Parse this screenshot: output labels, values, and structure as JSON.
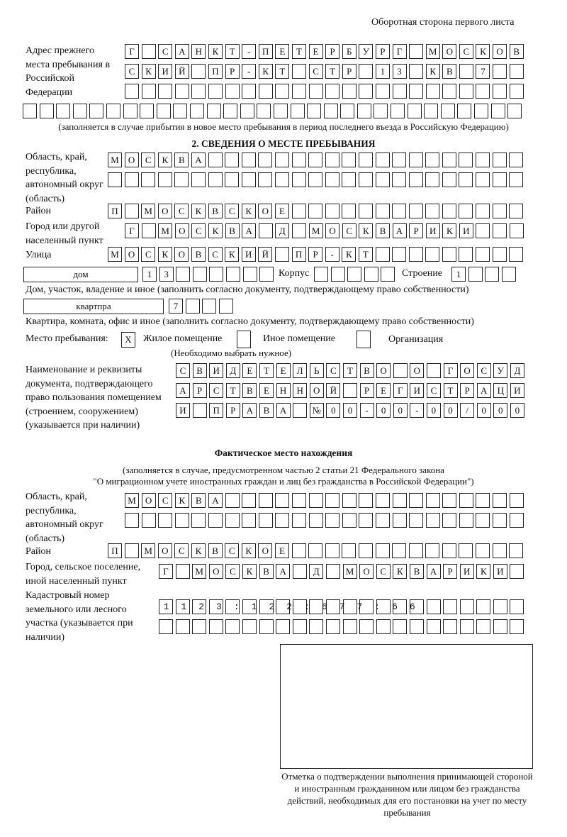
{
  "header": {
    "page_side": "Оборотная сторона первого листа"
  },
  "previous_address": {
    "label": "Адрес прежнего места пребывания в Российской Федерации",
    "rows": [
      "Г САНКТ-ПЕТЕРБУРГ МОСКОВ",
      "СКИЙ ПР-КТ СТР 13 КВ 7  ",
      "                        ",
      "                              "
    ],
    "note": "(заполняется в случае прибытия в новое место пребывания в период последнего въезда в Российскую Федерацию)"
  },
  "section2": {
    "title": "2. СВЕДЕНИЯ О МЕСТЕ ПРЕБЫВАНИЯ",
    "region_label": "Область, край, республика, автономный округ (область)",
    "region_rows": [
      "МОСКВА                   ",
      "                         "
    ],
    "district_label": "Район",
    "district": "П МОСКВСКОЕ              ",
    "city_label": "Город или другой населенный пункт",
    "city": "Г МОСКВА Д МОСКВАРИКИ   ",
    "street_label": "Улица",
    "street": "МОСКОВСКИЙ ПР-КТ         ",
    "house_type": "дом",
    "house_number": "13      ",
    "building_label": "Корпус",
    "building": "     ",
    "structure_label": "Строение",
    "structure": "1   ",
    "house_note": "Дом, участок, владение и иное (заполнить согласно документу, подтверждающему право собственности)",
    "apartment_type": "квартпра",
    "apartment_number": "7   ",
    "apartment_note": "Квартира, комната, офис и иное (заполнить согласно документу, подтверждающему право собственности)",
    "stay_place_label": "Место пребывания:",
    "stay_options": [
      {
        "label": "Жилое помещение",
        "mark": "X"
      },
      {
        "label": "Иное помещение",
        "mark": ""
      },
      {
        "label": "Организация",
        "mark": ""
      }
    ],
    "stay_note": "(Необходимо выбрать нужное)",
    "document_label": "Наименование и реквизиты документа, подтверждающего право пользования помещением (строением, сооружением) (указывается при наличии)",
    "document_rows": [
      "СВИДЕТЕЛЬСТВО О ГОСУД",
      "АРСТВЕННОЙ РЕГИСТРАЦИ",
      "И ПРАВА №00-00-00/000"
    ]
  },
  "actual_location": {
    "title": "Фактическое место нахождения",
    "note_line1": "(заполняется в случае, предусмотренном частью 2 статьи 21 Федерального закона",
    "note_line2": "\"О миграционном учете иностранных граждан и лиц без гражданства в Российской Федерации\")",
    "region_label": "Область, край, республика, автономный округ (область)",
    "region_rows": [
      "МОСКВА                  ",
      "                        "
    ],
    "district_label": "Район",
    "district": "П МОСКВСКОЕ              ",
    "city_label": "Город, сельское поселение, иной населенный пункт",
    "city": "Г МОСКВА Д МОСКВАРИКИ ",
    "cadastral_label": "Кадастровый номер земельного или лесного участка (указывается при наличии)",
    "cadastral_rows": [
      "1123:122:677:66       ",
      "                      "
    ]
  },
  "confirmation": {
    "caption": "Отметка о подтверждении выполнения принимающей стороной и иностранным гражданином или лицом без гражданства действий, необходимых для его постановки на учет по месту пребывания"
  }
}
